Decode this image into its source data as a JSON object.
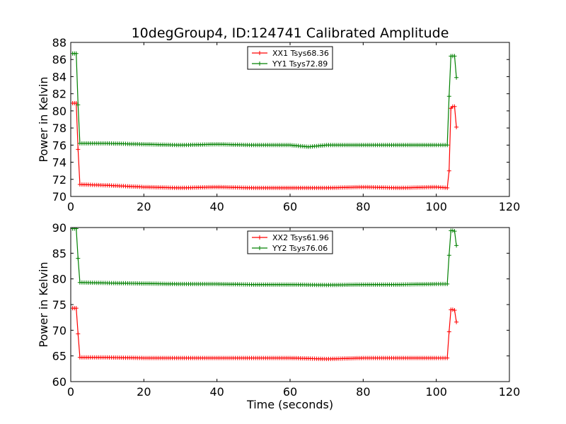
{
  "figure": {
    "title": "10degGroup4, ID:124741 Calibrated Amplitude"
  },
  "chart_data": [
    {
      "type": "line",
      "title": "10degGroup4, ID:124741 Calibrated Amplitude",
      "xlabel": "",
      "ylabel": "Power in Kelvin",
      "xlim": [
        0,
        120
      ],
      "ylim": [
        70,
        88
      ],
      "xticks": [
        "0",
        "20",
        "40",
        "60",
        "80",
        "100",
        "120"
      ],
      "yticks": [
        "70",
        "72",
        "74",
        "76",
        "78",
        "80",
        "82",
        "84",
        "86",
        "88"
      ],
      "legend_position": "top-center",
      "marker": "+",
      "series": [
        {
          "name": "XX1 Tsys68.36",
          "color": "#ff0000",
          "x": [
            0.5,
            1.0,
            1.5,
            2.0,
            2.5,
            10,
            20,
            30,
            40,
            50,
            60,
            70,
            80,
            90,
            100,
            103.0,
            103.5,
            104.0,
            104.5,
            105.0,
            105.5
          ],
          "y": [
            80.9,
            80.9,
            80.9,
            75.5,
            71.4,
            71.3,
            71.1,
            71.0,
            71.1,
            71.0,
            71.0,
            71.0,
            71.1,
            71.0,
            71.1,
            71.0,
            73.0,
            80.3,
            80.5,
            80.5,
            78.1
          ]
        },
        {
          "name": "YY1 Tsys72.89",
          "color": "#008000",
          "x": [
            0.5,
            1.0,
            1.5,
            2.0,
            2.5,
            10,
            20,
            30,
            40,
            50,
            60,
            65,
            70,
            80,
            90,
            100,
            103.0,
            103.5,
            104.0,
            104.5,
            105.0,
            105.5
          ],
          "y": [
            86.7,
            86.7,
            86.7,
            80.7,
            76.2,
            76.2,
            76.1,
            76.0,
            76.1,
            76.0,
            76.0,
            75.8,
            76.0,
            76.0,
            76.0,
            76.0,
            76.0,
            81.7,
            86.4,
            86.4,
            86.4,
            83.9
          ]
        }
      ]
    },
    {
      "type": "line",
      "title": "",
      "xlabel": "Time (seconds)",
      "ylabel": "Power in Kelvin",
      "xlim": [
        0,
        120
      ],
      "ylim": [
        60,
        90
      ],
      "xticks": [
        "0",
        "20",
        "40",
        "60",
        "80",
        "100",
        "120"
      ],
      "yticks": [
        "60",
        "65",
        "70",
        "75",
        "80",
        "85",
        "90"
      ],
      "legend_position": "top-center",
      "marker": "+",
      "series": [
        {
          "name": "XX2 Tsys61.96",
          "color": "#ff0000",
          "x": [
            0.5,
            1.0,
            1.5,
            2.0,
            2.5,
            10,
            20,
            30,
            40,
            50,
            60,
            70,
            80,
            90,
            100,
            103.0,
            103.5,
            104.0,
            104.5,
            105.0,
            105.5
          ],
          "y": [
            74.3,
            74.3,
            74.3,
            69.3,
            64.7,
            64.7,
            64.6,
            64.6,
            64.6,
            64.6,
            64.6,
            64.4,
            64.6,
            64.6,
            64.6,
            64.6,
            69.7,
            74.0,
            74.0,
            73.9,
            71.6
          ]
        },
        {
          "name": "YY2 Tsys76.06",
          "color": "#008000",
          "x": [
            0.5,
            1.0,
            1.5,
            2.0,
            2.5,
            10,
            20,
            30,
            40,
            50,
            60,
            70,
            80,
            90,
            100,
            103.0,
            103.5,
            104.0,
            104.5,
            105.0,
            105.5
          ],
          "y": [
            89.8,
            89.8,
            89.8,
            84.0,
            79.3,
            79.2,
            79.1,
            79.0,
            79.0,
            78.9,
            78.9,
            78.8,
            78.9,
            78.9,
            79.0,
            79.0,
            84.6,
            89.4,
            89.4,
            89.3,
            86.5
          ]
        }
      ]
    }
  ]
}
